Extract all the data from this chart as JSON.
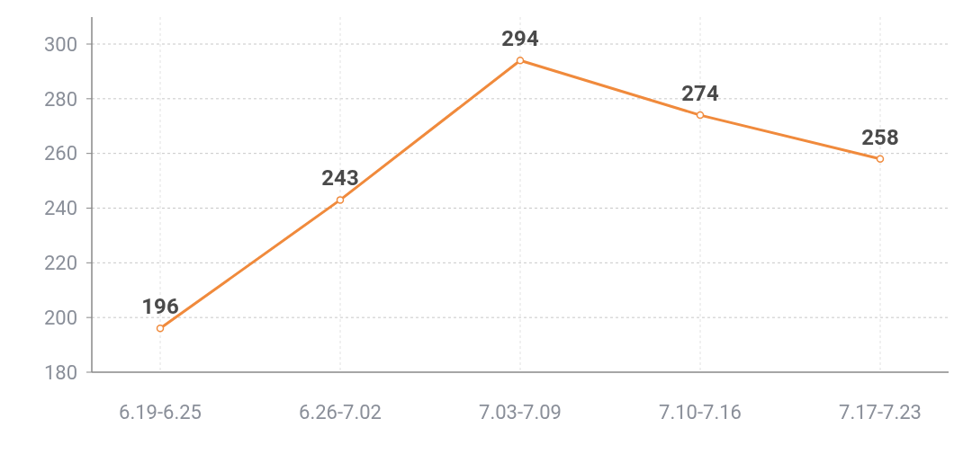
{
  "chart_data": {
    "type": "line",
    "categories": [
      "6.19-6.25",
      "6.26-7.02",
      "7.03-7.09",
      "7.10-7.16",
      "7.17-7.23"
    ],
    "series": [
      {
        "color": "#f08a3c",
        "values": [
          196,
          243,
          294,
          274,
          258
        ]
      }
    ],
    "ylim": [
      180,
      300
    ],
    "yticks": [
      180,
      200,
      220,
      240,
      260,
      280,
      300
    ],
    "grid": true,
    "marker": "circle",
    "data_labels": true
  }
}
